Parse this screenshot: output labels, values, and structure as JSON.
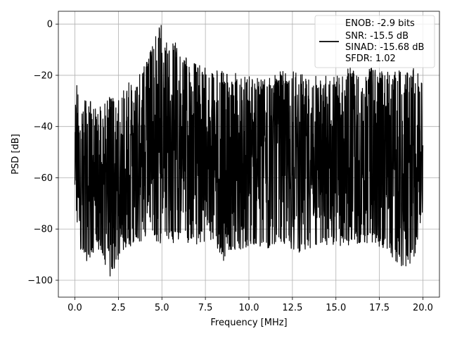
{
  "chart_data": {
    "type": "line",
    "xlabel": "Frequency [MHz]",
    "ylabel": "PSD [dB]",
    "xlim": [
      -0.95,
      20.95
    ],
    "ylim": [
      -106.6,
      5.0
    ],
    "xticks": [
      0.0,
      2.5,
      5.0,
      7.5,
      10.0,
      12.5,
      15.0,
      17.5,
      20.0
    ],
    "xtick_labels": [
      "0.0",
      "2.5",
      "5.0",
      "7.5",
      "10.0",
      "12.5",
      "15.0",
      "17.5",
      "20.0"
    ],
    "yticks": [
      0,
      -20,
      -40,
      -60,
      -80,
      -100
    ],
    "ytick_labels": [
      "0",
      "−20",
      "−40",
      "−60",
      "−80",
      "−100"
    ],
    "grid": true,
    "legend_position": "top-right",
    "legend_lines": [
      "ENOB: -2.9 bits",
      "SNR: -15.5 dB",
      "SINAD: -15.68 dB",
      "SFDR: 1.02"
    ],
    "series_color": "#000000",
    "series": [
      {
        "envelope": {
          "x_max": [
            0.0,
            0.05,
            0.3,
            0.6,
            1.0,
            1.5,
            2.0,
            2.5,
            3.0,
            3.5,
            4.0,
            4.5,
            4.8,
            5.0,
            5.3,
            5.7,
            6.0,
            6.5,
            7.0,
            7.5,
            8.0,
            9.0,
            10.0,
            11.0,
            12.0,
            13.0,
            14.0,
            15.0,
            16.0,
            17.0,
            18.0,
            18.8,
            19.5,
            20.0
          ],
          "y_max": [
            -45,
            -17,
            -34,
            -28,
            -30,
            -32,
            -28,
            -30,
            -22,
            -22,
            -15,
            -8,
            -1,
            0,
            -8,
            -5,
            -12,
            -13,
            -16,
            -16,
            -18,
            -19,
            -20,
            -21,
            -18,
            -19,
            -20,
            -19,
            -16,
            -17,
            -18,
            -18,
            -17,
            -22
          ],
          "x_min": [
            0.0,
            0.3,
            0.6,
            1.0,
            1.5,
            2.0,
            2.5,
            3.0,
            4.0,
            5.0,
            6.0,
            7.0,
            8.0,
            8.5,
            9.0,
            10.0,
            11.0,
            12.0,
            13.0,
            14.0,
            15.0,
            16.0,
            17.0,
            18.0,
            18.8,
            19.5,
            20.0
          ],
          "y_min": [
            -72,
            -88,
            -93,
            -90,
            -88,
            -100,
            -92,
            -88,
            -84,
            -86,
            -85,
            -86,
            -85,
            -93,
            -88,
            -88,
            -88,
            -86,
            -90,
            -87,
            -88,
            -86,
            -86,
            -89,
            -96,
            -92,
            -75
          ]
        }
      }
    ]
  }
}
